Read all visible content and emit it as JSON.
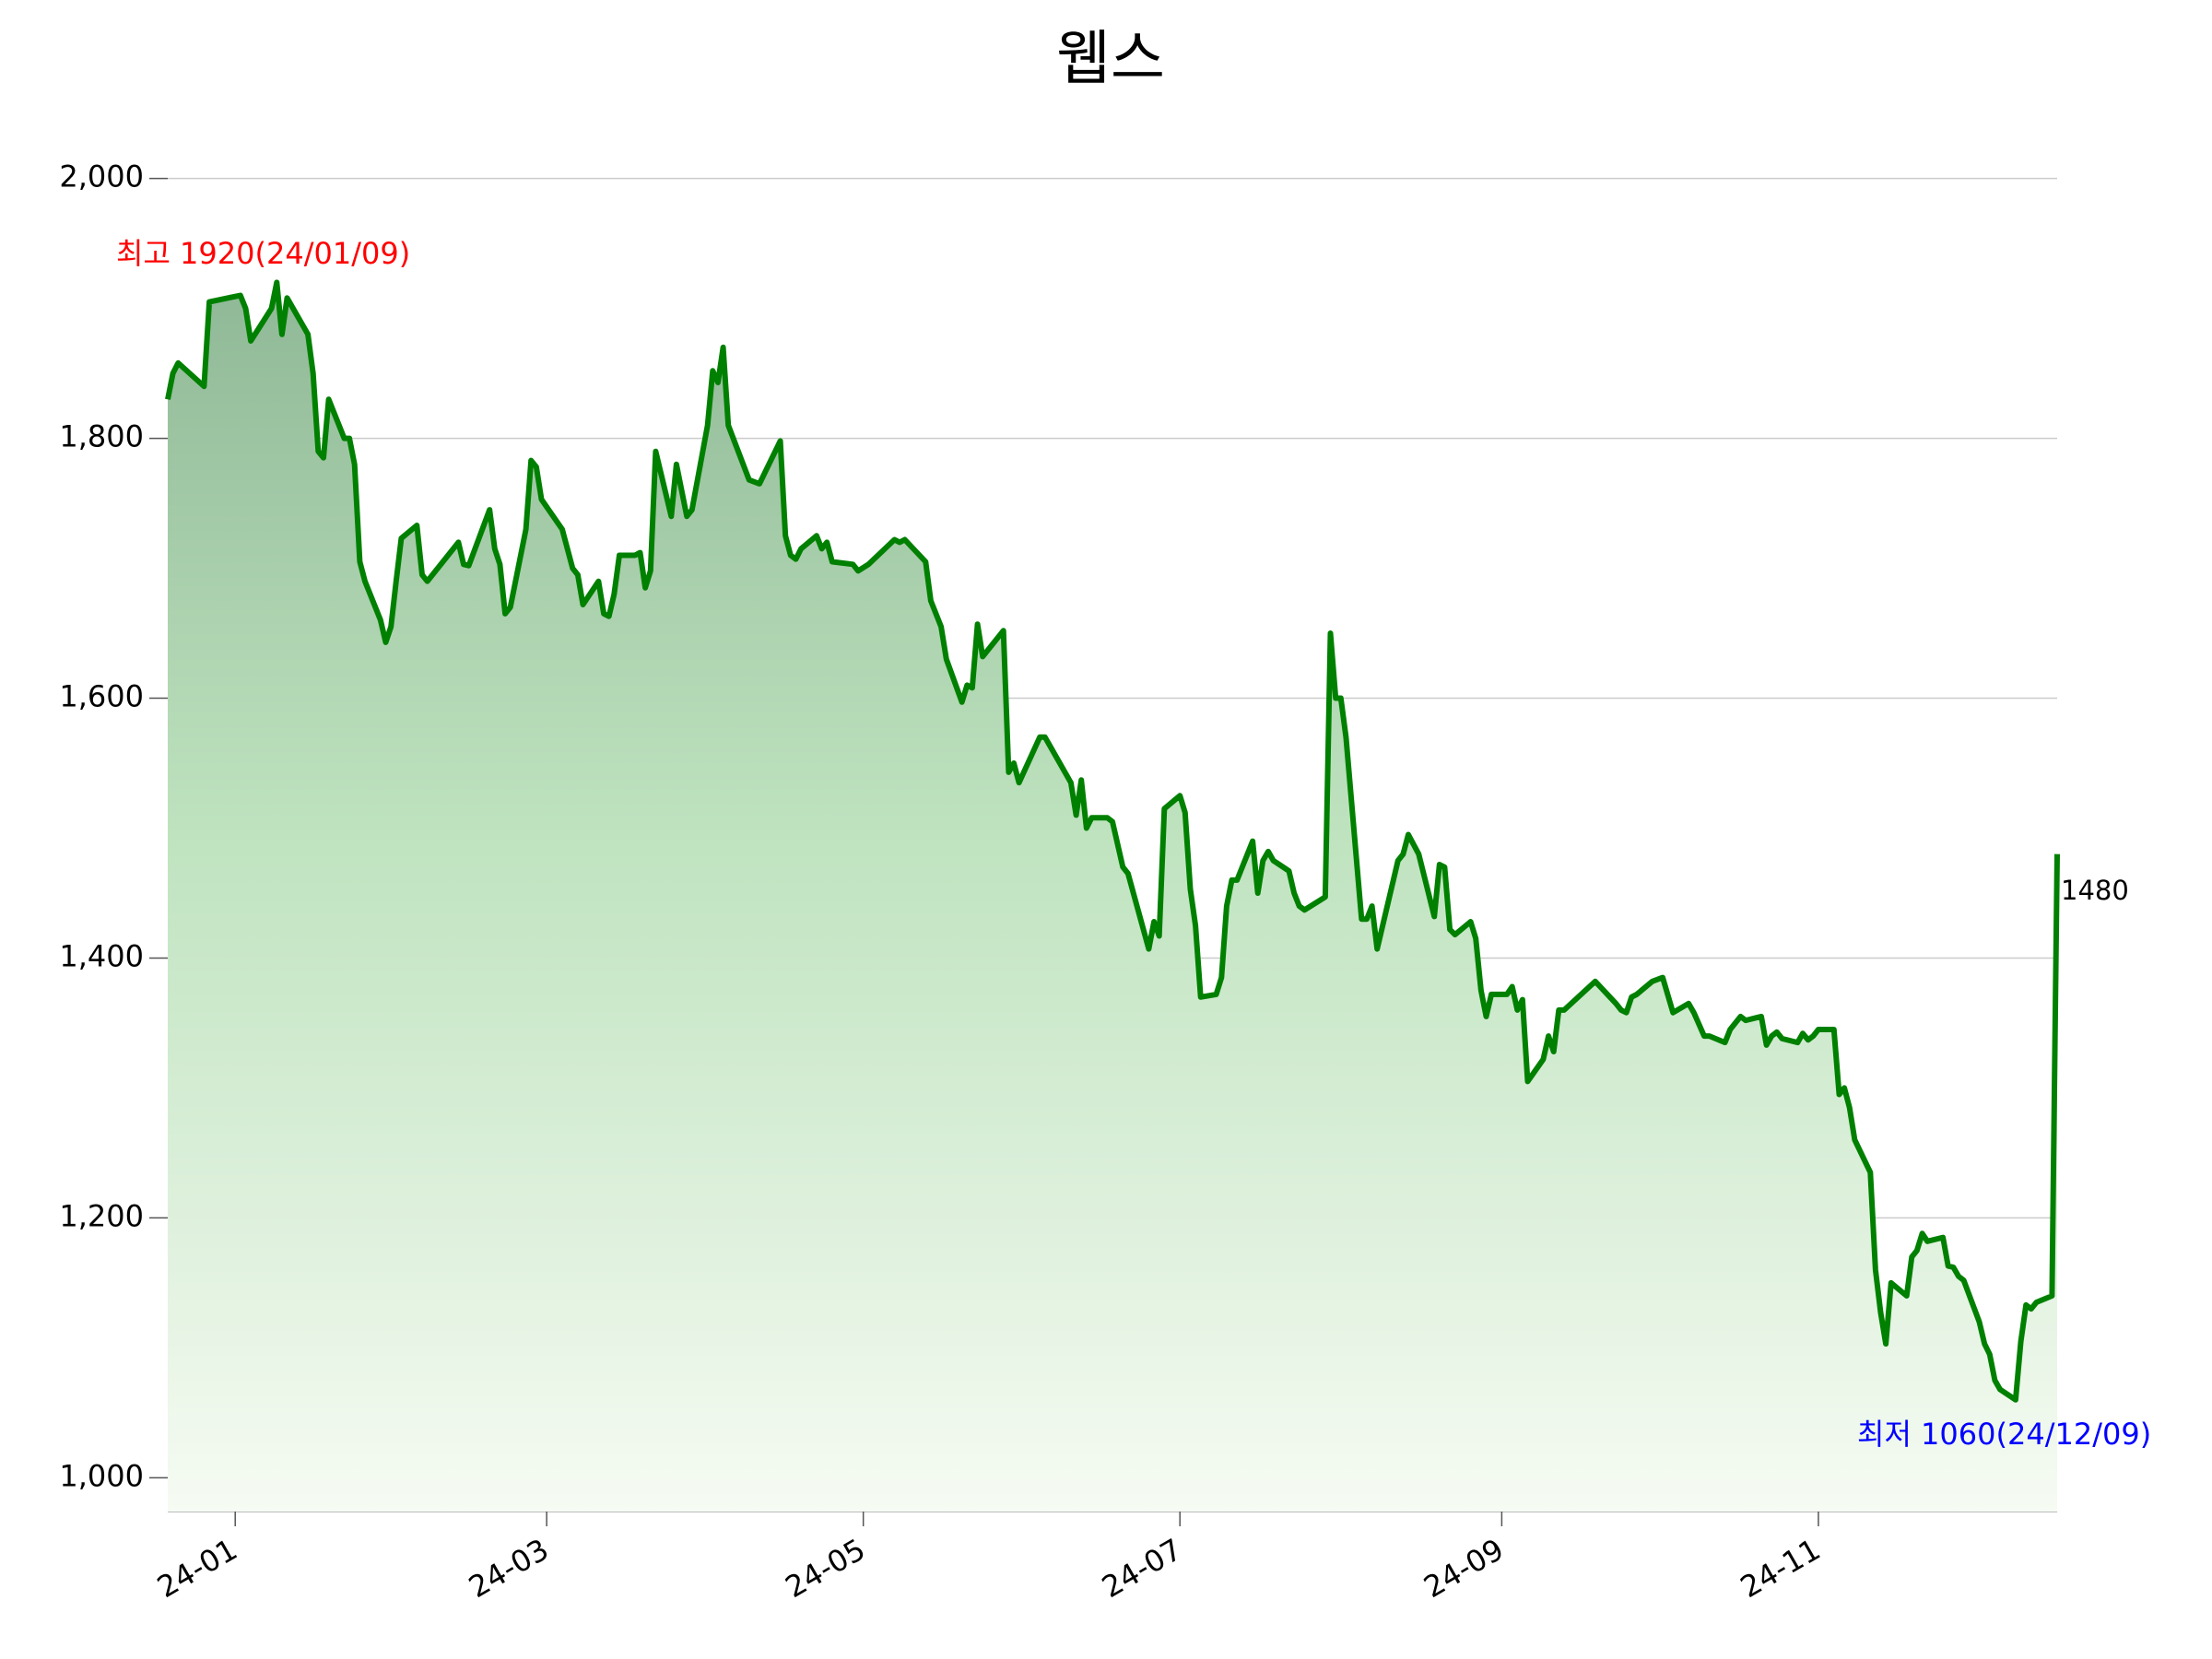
{
  "chart_data": {
    "type": "line",
    "title": "웹스",
    "x": [
      "2023-12-19",
      "2023-12-20",
      "2023-12-21",
      "2023-12-26",
      "2023-12-27",
      "2024-01-02",
      "2024-01-03",
      "2024-01-04",
      "2024-01-08",
      "2024-01-09",
      "2024-01-10",
      "2024-01-11",
      "2024-01-15",
      "2024-01-16",
      "2024-01-17",
      "2024-01-18",
      "2024-01-19",
      "2024-01-22",
      "2024-01-23",
      "2024-01-24",
      "2024-01-25",
      "2024-01-26",
      "2024-01-29",
      "2024-01-30",
      "2024-01-31",
      "2024-02-01",
      "2024-02-02",
      "2024-02-05",
      "2024-02-06",
      "2024-02-07",
      "2024-02-13",
      "2024-02-14",
      "2024-02-15",
      "2024-02-19",
      "2024-02-20",
      "2024-02-21",
      "2024-02-22",
      "2024-02-23",
      "2024-02-26",
      "2024-02-27",
      "2024-02-28",
      "2024-02-29",
      "2024-03-04",
      "2024-03-06",
      "2024-03-07",
      "2024-03-08",
      "2024-03-11",
      "2024-03-12",
      "2024-03-13",
      "2024-03-14",
      "2024-03-15",
      "2024-03-18",
      "2024-03-19",
      "2024-03-20",
      "2024-03-21",
      "2024-03-22",
      "2024-03-25",
      "2024-03-26",
      "2024-03-28",
      "2024-03-29",
      "2024-04-01",
      "2024-04-02",
      "2024-04-03",
      "2024-04-04",
      "2024-04-05",
      "2024-04-09",
      "2024-04-11",
      "2024-04-15",
      "2024-04-16",
      "2024-04-17",
      "2024-04-18",
      "2024-04-19",
      "2024-04-22",
      "2024-04-23",
      "2024-04-24",
      "2024-04-25",
      "2024-04-29",
      "2024-04-30",
      "2024-05-02",
      "2024-05-07",
      "2024-05-08",
      "2024-05-09",
      "2024-05-13",
      "2024-05-14",
      "2024-05-16",
      "2024-05-17",
      "2024-05-20",
      "2024-05-21",
      "2024-05-22",
      "2024-05-23",
      "2024-05-24",
      "2024-05-28",
      "2024-05-29",
      "2024-05-30",
      "2024-05-31",
      "2024-06-04",
      "2024-06-05",
      "2024-06-10",
      "2024-06-11",
      "2024-06-12",
      "2024-06-13",
      "2024-06-14",
      "2024-06-17",
      "2024-06-18",
      "2024-06-20",
      "2024-06-21",
      "2024-06-25",
      "2024-06-26",
      "2024-06-27",
      "2024-06-28",
      "2024-07-01",
      "2024-07-02",
      "2024-07-03",
      "2024-07-04",
      "2024-07-05",
      "2024-07-08",
      "2024-07-09",
      "2024-07-10",
      "2024-07-11",
      "2024-07-12",
      "2024-07-15",
      "2024-07-16",
      "2024-07-17",
      "2024-07-18",
      "2024-07-19",
      "2024-07-22",
      "2024-07-23",
      "2024-07-24",
      "2024-07-25",
      "2024-07-29",
      "2024-07-30",
      "2024-07-31",
      "2024-08-01",
      "2024-08-02",
      "2024-08-05",
      "2024-08-06",
      "2024-08-07",
      "2024-08-08",
      "2024-08-12",
      "2024-08-13",
      "2024-08-14",
      "2024-08-16",
      "2024-08-19",
      "2024-08-20",
      "2024-08-21",
      "2024-08-22",
      "2024-08-23",
      "2024-08-26",
      "2024-08-27",
      "2024-08-28",
      "2024-08-29",
      "2024-08-30",
      "2024-09-02",
      "2024-09-03",
      "2024-09-04",
      "2024-09-05",
      "2024-09-06",
      "2024-09-09",
      "2024-09-10",
      "2024-09-11",
      "2024-09-12",
      "2024-09-13",
      "2024-09-19",
      "2024-09-23",
      "2024-09-24",
      "2024-09-25",
      "2024-09-26",
      "2024-09-27",
      "2024-09-30",
      "2024-10-02",
      "2024-10-04",
      "2024-10-07",
      "2024-10-08",
      "2024-10-10",
      "2024-10-11",
      "2024-10-14",
      "2024-10-15",
      "2024-10-17",
      "2024-10-18",
      "2024-10-21",
      "2024-10-22",
      "2024-10-23",
      "2024-10-24",
      "2024-10-25",
      "2024-10-28",
      "2024-10-29",
      "2024-10-30",
      "2024-10-31",
      "2024-11-01",
      "2024-11-04",
      "2024-11-05",
      "2024-11-06",
      "2024-11-07",
      "2024-11-08",
      "2024-11-11",
      "2024-11-12",
      "2024-11-13",
      "2024-11-14",
      "2024-11-15",
      "2024-11-18",
      "2024-11-19",
      "2024-11-20",
      "2024-11-21",
      "2024-11-22",
      "2024-11-25",
      "2024-11-26",
      "2024-11-27",
      "2024-11-28",
      "2024-11-29",
      "2024-12-02",
      "2024-12-03",
      "2024-12-04",
      "2024-12-05",
      "2024-12-06",
      "2024-12-09",
      "2024-12-10",
      "2024-12-11",
      "2024-12-12",
      "2024-12-13",
      "2024-12-16",
      "2024-12-17"
    ],
    "values": [
      1830,
      1850,
      1858,
      1840,
      1905,
      1910,
      1900,
      1875,
      1900,
      1920,
      1880,
      1908,
      1880,
      1850,
      1790,
      1785,
      1830,
      1800,
      1800,
      1780,
      1705,
      1690,
      1660,
      1643,
      1655,
      1690,
      1723,
      1733,
      1695,
      1690,
      1720,
      1703,
      1702,
      1745,
      1715,
      1703,
      1665,
      1670,
      1730,
      1783,
      1778,
      1753,
      1730,
      1700,
      1695,
      1672,
      1690,
      1665,
      1663,
      1680,
      1710,
      1710,
      1712,
      1685,
      1698,
      1790,
      1740,
      1780,
      1740,
      1745,
      1810,
      1852,
      1843,
      1870,
      1810,
      1768,
      1765,
      1798,
      1725,
      1710,
      1707,
      1715,
      1725,
      1715,
      1720,
      1705,
      1703,
      1698,
      1703,
      1722,
      1720,
      1722,
      1705,
      1675,
      1655,
      1630,
      1597,
      1610,
      1608,
      1657,
      1632,
      1652,
      1543,
      1550,
      1535,
      1570,
      1570,
      1535,
      1510,
      1537,
      1500,
      1508,
      1508,
      1505,
      1470,
      1465,
      1407,
      1428,
      1417,
      1515,
      1525,
      1512,
      1453,
      1425,
      1370,
      1372,
      1385,
      1440,
      1460,
      1460,
      1490,
      1450,
      1475,
      1482,
      1475,
      1467,
      1450,
      1440,
      1437,
      1447,
      1650,
      1600,
      1600,
      1570,
      1430,
      1430,
      1440,
      1407,
      1475,
      1480,
      1495,
      1480,
      1432,
      1472,
      1470,
      1422,
      1418,
      1428,
      1415,
      1375,
      1355,
      1372,
      1372,
      1378,
      1360,
      1368,
      1305,
      1322,
      1340,
      1328,
      1360,
      1360,
      1382,
      1365,
      1360,
      1358,
      1370,
      1372,
      1382,
      1385,
      1358,
      1365,
      1358,
      1340,
      1340,
      1335,
      1345,
      1355,
      1352,
      1355,
      1333,
      1340,
      1343,
      1338,
      1335,
      1342,
      1337,
      1340,
      1345,
      1345,
      1295,
      1300,
      1285,
      1260,
      1235,
      1160,
      1127,
      1103,
      1150,
      1140,
      1170,
      1175,
      1188,
      1182,
      1185,
      1163,
      1162,
      1155,
      1152,
      1120,
      1103,
      1095,
      1075,
      1068,
      1060,
      1105,
      1133,
      1130,
      1135,
      1140,
      1480
    ],
    "color": "#008000",
    "xlim": [
      "2023-12-19",
      "2024-12-17"
    ],
    "xticks": [
      {
        "value": "2024-01-01",
        "label": "24-01"
      },
      {
        "value": "2024-03-01",
        "label": "24-03"
      },
      {
        "value": "2024-05-01",
        "label": "24-05"
      },
      {
        "value": "2024-07-01",
        "label": "24-07"
      },
      {
        "value": "2024-09-01",
        "label": "24-09"
      },
      {
        "value": "2024-11-01",
        "label": "24-11"
      }
    ],
    "ylim": [
      974,
      2026
    ],
    "yticks": [
      {
        "value": 1000,
        "label": "1,000"
      },
      {
        "value": 1200,
        "label": "1,200"
      },
      {
        "value": 1400,
        "label": "1,400"
      },
      {
        "value": 1600,
        "label": "1,600"
      },
      {
        "value": 1800,
        "label": "1,800"
      },
      {
        "value": 2000,
        "label": "2,000"
      }
    ],
    "grid": true,
    "annotations": [
      {
        "text": "최고 1920(24/01/09)",
        "color": "#ff0000"
      },
      {
        "text": "최저 1060(24/12/09)",
        "color": "#0000ff"
      },
      {
        "text": "1480",
        "color": "#000000"
      }
    ]
  }
}
